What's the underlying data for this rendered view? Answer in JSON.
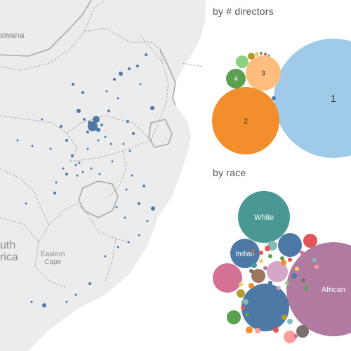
{
  "map": {
    "labels": {
      "botswana_partial": "swana",
      "south_africa_partial": "uth\nrica",
      "eastern_cape": "Eastern\nCape"
    },
    "colors": {
      "land": "#ececec",
      "border": "#b8b8b8",
      "point": "#4e79a7"
    }
  },
  "directors_section": {
    "title": "by # directors",
    "bubbles": [
      {
        "label": "1",
        "color": "#a0cbe8"
      },
      {
        "label": "2",
        "color": "#f28e2b"
      },
      {
        "label": "3",
        "color": "#ffbe7d"
      },
      {
        "label": "4",
        "color": "#59a14f"
      },
      {
        "label": "",
        "color": "#8cd17d"
      },
      {
        "label": "",
        "color": "#b6992d"
      },
      {
        "label": "",
        "color": "#f1ce63"
      },
      {
        "label": "",
        "color": "#499894"
      },
      {
        "label": "",
        "color": "#e15759"
      },
      {
        "label": "",
        "color": "#86bcb6"
      },
      {
        "label": "",
        "color": "#4e79a7"
      }
    ]
  },
  "race_section": {
    "title": "by race",
    "bubbles": [
      {
        "label": "African",
        "color": "#b07aa1"
      },
      {
        "label": "White",
        "color": "#499894"
      },
      {
        "label": "Indian",
        "color": "#4e79a7"
      },
      {
        "label": "",
        "color": "#4e79a7"
      },
      {
        "label": "",
        "color": "#d37295"
      },
      {
        "label": "",
        "color": "#4e79a7"
      },
      {
        "label": "",
        "color": "#d4a6c8"
      },
      {
        "label": "",
        "color": "#9d7660"
      },
      {
        "label": "",
        "color": "#e15759"
      },
      {
        "label": "",
        "color": "#59a14f"
      },
      {
        "label": "",
        "color": "#79706e"
      },
      {
        "label": "",
        "color": "#ff9d9a"
      },
      {
        "label": "",
        "color": "#86bcb6"
      },
      {
        "label": "",
        "color": "#f28e2b"
      },
      {
        "label": "",
        "color": "#b6992d"
      }
    ]
  }
}
